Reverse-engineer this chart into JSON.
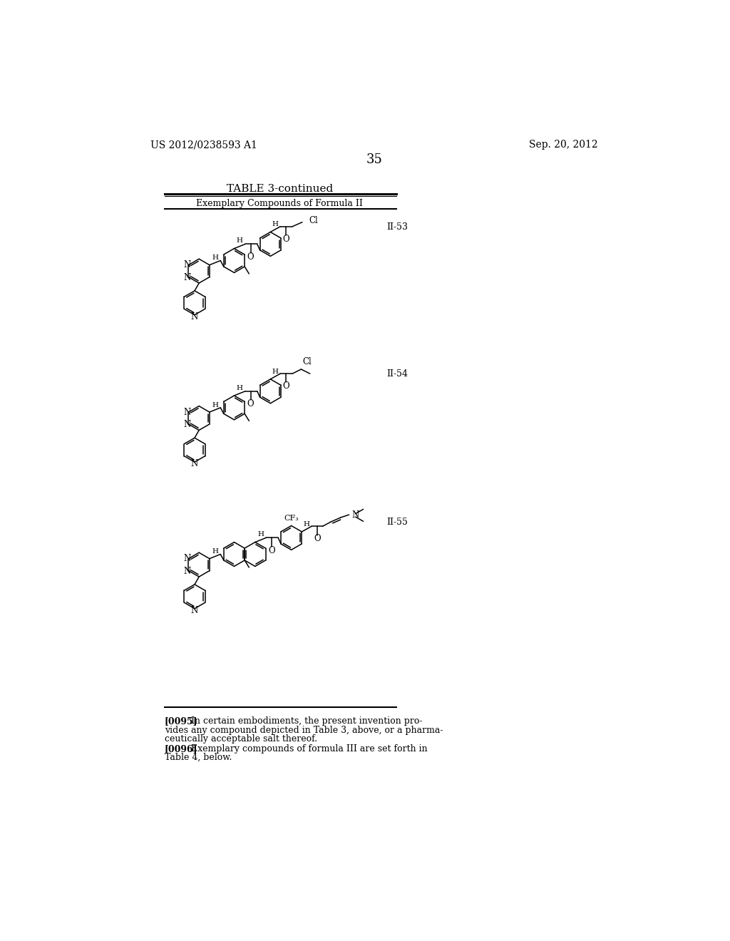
{
  "page_number": "35",
  "patent_number": "US 2012/0238593 A1",
  "patent_date": "Sep. 20, 2012",
  "table_title": "TABLE 3-continued",
  "table_subtitle": "Exemplary Compounds of Formula II",
  "compound_labels": [
    "II-53",
    "II-54",
    "II-55"
  ],
  "para_0095_bold": "[0095]",
  "para_0095_text": "   In certain embodiments, the present invention pro-",
  "para_0095_line2": "vides any compound depicted in Table 3, above, or a pharma-",
  "para_0095_line3": "ceutically acceptable salt thereof.",
  "para_0096_bold": "[0096]",
  "para_0096_text": "   Exemplary compounds of formula III are set forth in",
  "para_0096_line2": "Table 4, below.",
  "bg_color": "#ffffff",
  "text_color": "#000000"
}
